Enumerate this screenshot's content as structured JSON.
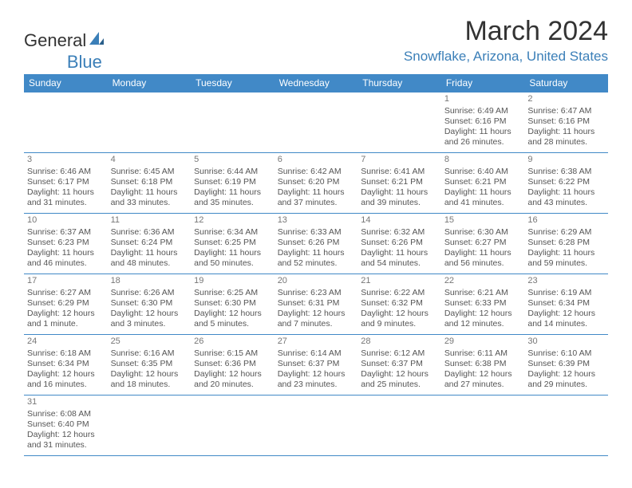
{
  "logo": {
    "text1": "General",
    "text2": "Blue"
  },
  "title": "March 2024",
  "location": "Snowflake, Arizona, United States",
  "colors": {
    "header_bg": "#4189c7",
    "header_fg": "#ffffff",
    "accent": "#3b7fb8",
    "border": "#4189c7",
    "text": "#555555",
    "daynum": "#777777"
  },
  "day_headers": [
    "Sunday",
    "Monday",
    "Tuesday",
    "Wednesday",
    "Thursday",
    "Friday",
    "Saturday"
  ],
  "weeks": [
    [
      null,
      null,
      null,
      null,
      null,
      {
        "n": "1",
        "sr": "Sunrise: 6:49 AM",
        "ss": "Sunset: 6:16 PM",
        "d1": "Daylight: 11 hours",
        "d2": "and 26 minutes."
      },
      {
        "n": "2",
        "sr": "Sunrise: 6:47 AM",
        "ss": "Sunset: 6:16 PM",
        "d1": "Daylight: 11 hours",
        "d2": "and 28 minutes."
      }
    ],
    [
      {
        "n": "3",
        "sr": "Sunrise: 6:46 AM",
        "ss": "Sunset: 6:17 PM",
        "d1": "Daylight: 11 hours",
        "d2": "and 31 minutes."
      },
      {
        "n": "4",
        "sr": "Sunrise: 6:45 AM",
        "ss": "Sunset: 6:18 PM",
        "d1": "Daylight: 11 hours",
        "d2": "and 33 minutes."
      },
      {
        "n": "5",
        "sr": "Sunrise: 6:44 AM",
        "ss": "Sunset: 6:19 PM",
        "d1": "Daylight: 11 hours",
        "d2": "and 35 minutes."
      },
      {
        "n": "6",
        "sr": "Sunrise: 6:42 AM",
        "ss": "Sunset: 6:20 PM",
        "d1": "Daylight: 11 hours",
        "d2": "and 37 minutes."
      },
      {
        "n": "7",
        "sr": "Sunrise: 6:41 AM",
        "ss": "Sunset: 6:21 PM",
        "d1": "Daylight: 11 hours",
        "d2": "and 39 minutes."
      },
      {
        "n": "8",
        "sr": "Sunrise: 6:40 AM",
        "ss": "Sunset: 6:21 PM",
        "d1": "Daylight: 11 hours",
        "d2": "and 41 minutes."
      },
      {
        "n": "9",
        "sr": "Sunrise: 6:38 AM",
        "ss": "Sunset: 6:22 PM",
        "d1": "Daylight: 11 hours",
        "d2": "and 43 minutes."
      }
    ],
    [
      {
        "n": "10",
        "sr": "Sunrise: 6:37 AM",
        "ss": "Sunset: 6:23 PM",
        "d1": "Daylight: 11 hours",
        "d2": "and 46 minutes."
      },
      {
        "n": "11",
        "sr": "Sunrise: 6:36 AM",
        "ss": "Sunset: 6:24 PM",
        "d1": "Daylight: 11 hours",
        "d2": "and 48 minutes."
      },
      {
        "n": "12",
        "sr": "Sunrise: 6:34 AM",
        "ss": "Sunset: 6:25 PM",
        "d1": "Daylight: 11 hours",
        "d2": "and 50 minutes."
      },
      {
        "n": "13",
        "sr": "Sunrise: 6:33 AM",
        "ss": "Sunset: 6:26 PM",
        "d1": "Daylight: 11 hours",
        "d2": "and 52 minutes."
      },
      {
        "n": "14",
        "sr": "Sunrise: 6:32 AM",
        "ss": "Sunset: 6:26 PM",
        "d1": "Daylight: 11 hours",
        "d2": "and 54 minutes."
      },
      {
        "n": "15",
        "sr": "Sunrise: 6:30 AM",
        "ss": "Sunset: 6:27 PM",
        "d1": "Daylight: 11 hours",
        "d2": "and 56 minutes."
      },
      {
        "n": "16",
        "sr": "Sunrise: 6:29 AM",
        "ss": "Sunset: 6:28 PM",
        "d1": "Daylight: 11 hours",
        "d2": "and 59 minutes."
      }
    ],
    [
      {
        "n": "17",
        "sr": "Sunrise: 6:27 AM",
        "ss": "Sunset: 6:29 PM",
        "d1": "Daylight: 12 hours",
        "d2": "and 1 minute."
      },
      {
        "n": "18",
        "sr": "Sunrise: 6:26 AM",
        "ss": "Sunset: 6:30 PM",
        "d1": "Daylight: 12 hours",
        "d2": "and 3 minutes."
      },
      {
        "n": "19",
        "sr": "Sunrise: 6:25 AM",
        "ss": "Sunset: 6:30 PM",
        "d1": "Daylight: 12 hours",
        "d2": "and 5 minutes."
      },
      {
        "n": "20",
        "sr": "Sunrise: 6:23 AM",
        "ss": "Sunset: 6:31 PM",
        "d1": "Daylight: 12 hours",
        "d2": "and 7 minutes."
      },
      {
        "n": "21",
        "sr": "Sunrise: 6:22 AM",
        "ss": "Sunset: 6:32 PM",
        "d1": "Daylight: 12 hours",
        "d2": "and 9 minutes."
      },
      {
        "n": "22",
        "sr": "Sunrise: 6:21 AM",
        "ss": "Sunset: 6:33 PM",
        "d1": "Daylight: 12 hours",
        "d2": "and 12 minutes."
      },
      {
        "n": "23",
        "sr": "Sunrise: 6:19 AM",
        "ss": "Sunset: 6:34 PM",
        "d1": "Daylight: 12 hours",
        "d2": "and 14 minutes."
      }
    ],
    [
      {
        "n": "24",
        "sr": "Sunrise: 6:18 AM",
        "ss": "Sunset: 6:34 PM",
        "d1": "Daylight: 12 hours",
        "d2": "and 16 minutes."
      },
      {
        "n": "25",
        "sr": "Sunrise: 6:16 AM",
        "ss": "Sunset: 6:35 PM",
        "d1": "Daylight: 12 hours",
        "d2": "and 18 minutes."
      },
      {
        "n": "26",
        "sr": "Sunrise: 6:15 AM",
        "ss": "Sunset: 6:36 PM",
        "d1": "Daylight: 12 hours",
        "d2": "and 20 minutes."
      },
      {
        "n": "27",
        "sr": "Sunrise: 6:14 AM",
        "ss": "Sunset: 6:37 PM",
        "d1": "Daylight: 12 hours",
        "d2": "and 23 minutes."
      },
      {
        "n": "28",
        "sr": "Sunrise: 6:12 AM",
        "ss": "Sunset: 6:37 PM",
        "d1": "Daylight: 12 hours",
        "d2": "and 25 minutes."
      },
      {
        "n": "29",
        "sr": "Sunrise: 6:11 AM",
        "ss": "Sunset: 6:38 PM",
        "d1": "Daylight: 12 hours",
        "d2": "and 27 minutes."
      },
      {
        "n": "30",
        "sr": "Sunrise: 6:10 AM",
        "ss": "Sunset: 6:39 PM",
        "d1": "Daylight: 12 hours",
        "d2": "and 29 minutes."
      }
    ],
    [
      {
        "n": "31",
        "sr": "Sunrise: 6:08 AM",
        "ss": "Sunset: 6:40 PM",
        "d1": "Daylight: 12 hours",
        "d2": "and 31 minutes."
      },
      null,
      null,
      null,
      null,
      null,
      null
    ]
  ]
}
